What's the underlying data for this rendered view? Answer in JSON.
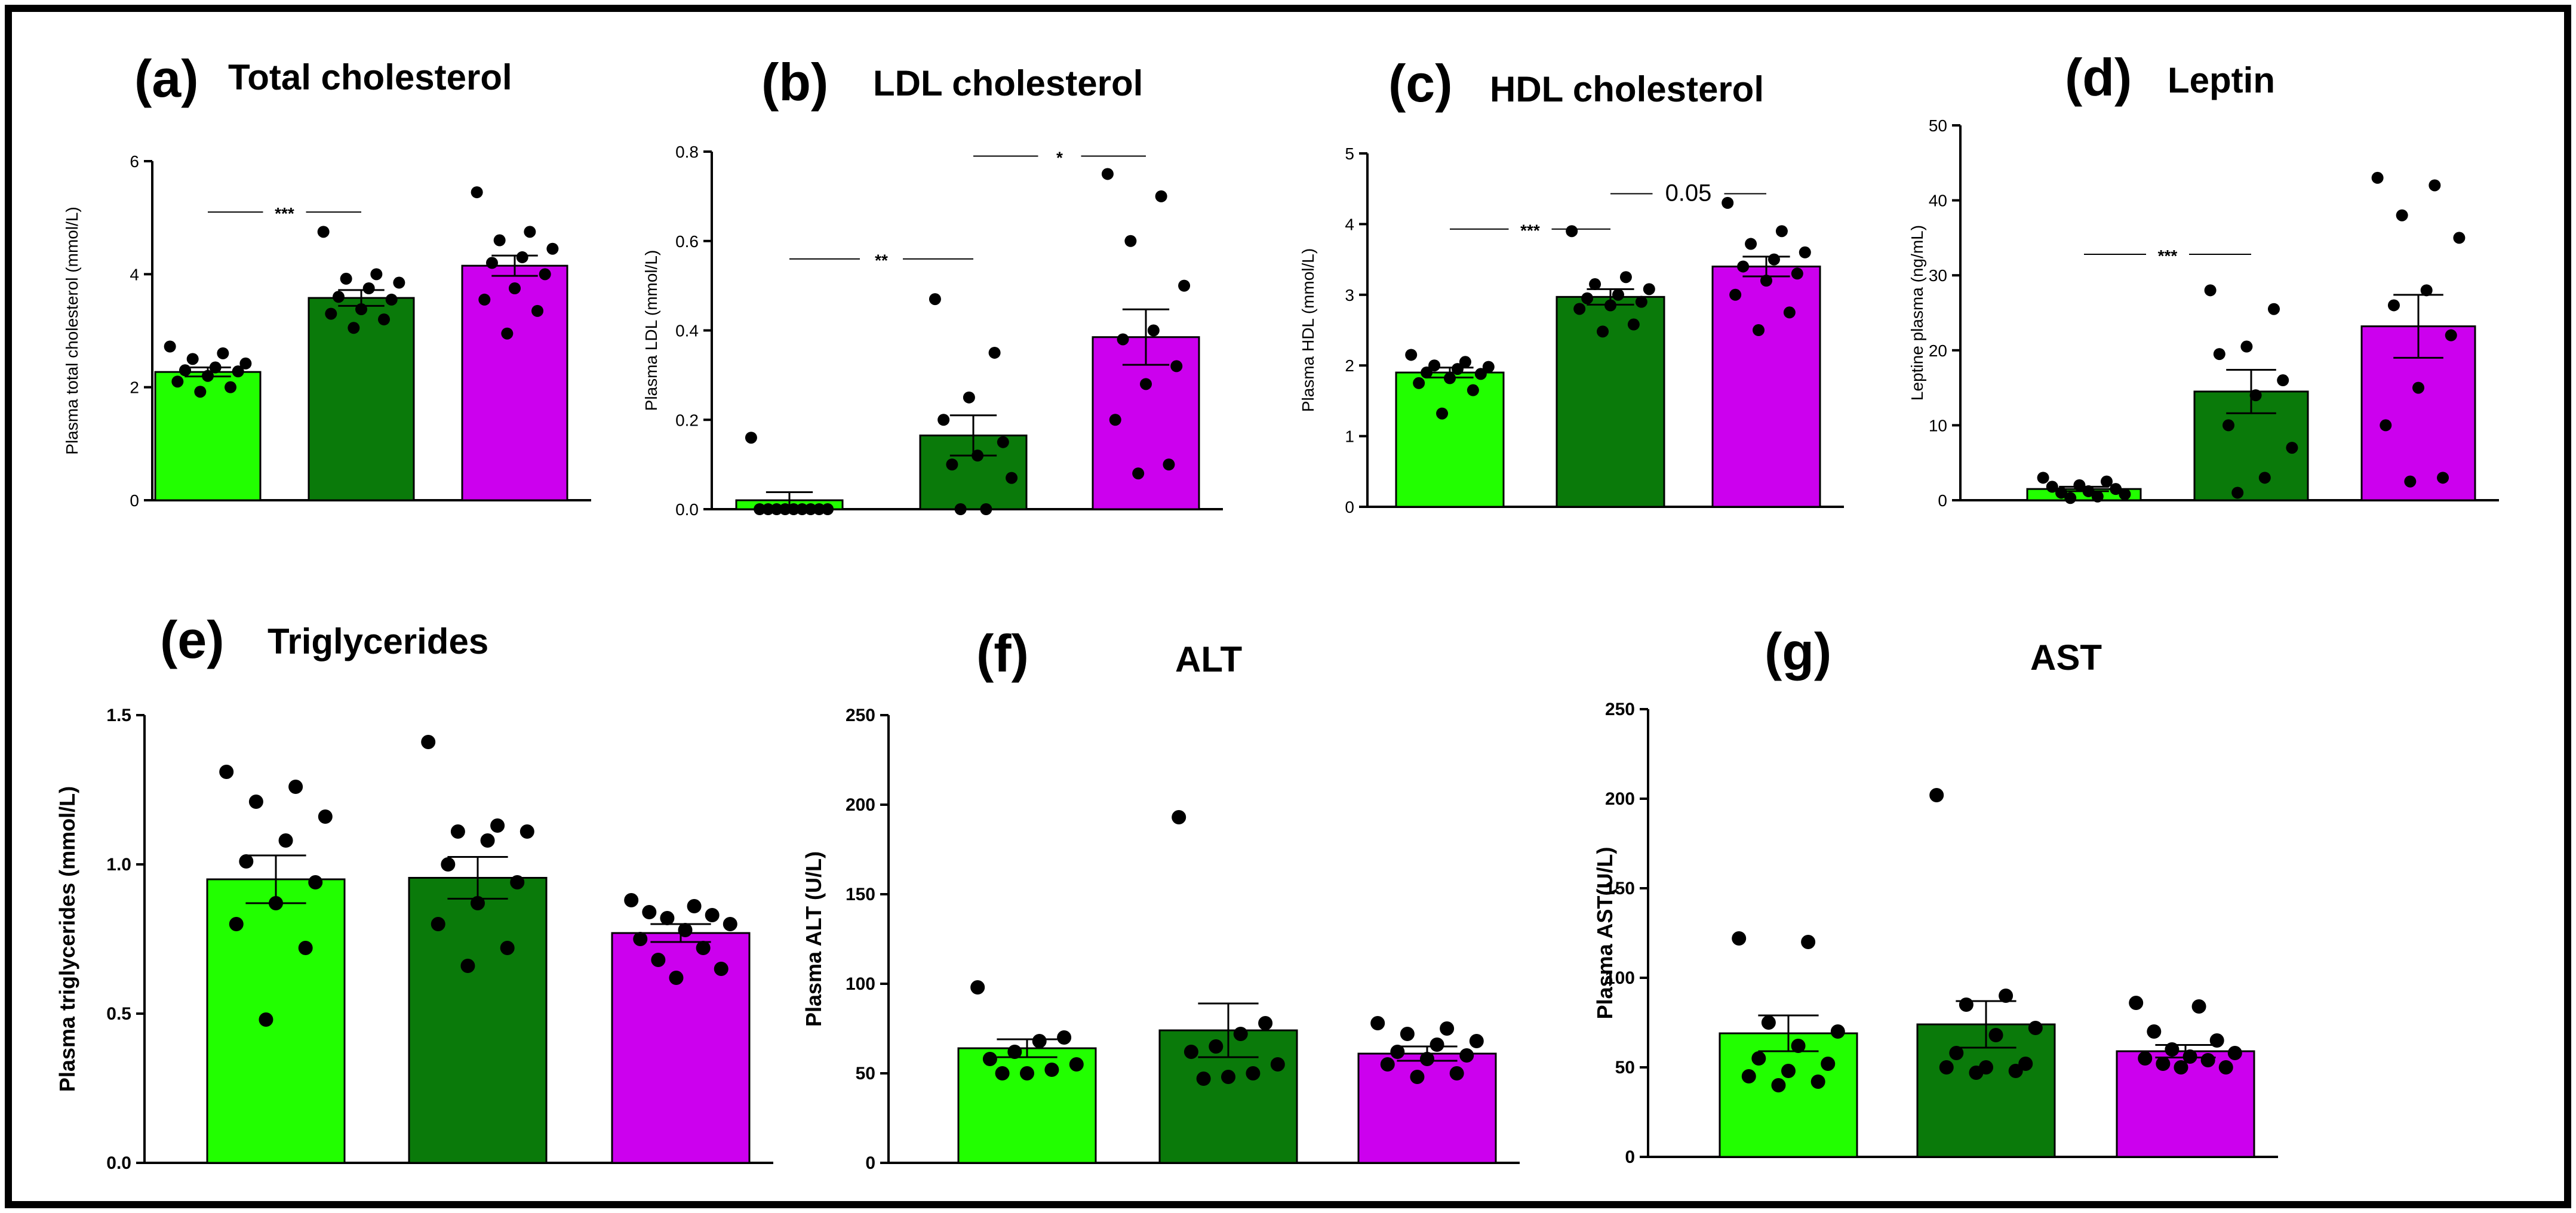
{
  "figure": {
    "colors": [
      "#22ff00",
      "#0a7a0a",
      "#cc00ee"
    ]
  },
  "chart_data": [
    {
      "id": "a",
      "letter": "(a)",
      "type": "bar",
      "title": "Total cholesterol",
      "ylabel": "Plasma total cholesterol (mmol/L)",
      "ylim": [
        0,
        6
      ],
      "yticks": [
        0,
        2,
        4,
        6
      ],
      "ytick_labels": [
        "0",
        "2",
        "4",
        "6"
      ],
      "groups": [
        {
          "mean": 2.27,
          "sem": 0.08,
          "points": [
            2.72,
            2.6,
            2.5,
            2.42,
            2.35,
            2.3,
            2.28,
            2.2,
            2.1,
            2.0,
            1.92
          ]
        },
        {
          "mean": 3.58,
          "sem": 0.14,
          "points": [
            4.75,
            4.0,
            3.92,
            3.85,
            3.75,
            3.6,
            3.55,
            3.38,
            3.3,
            3.2,
            3.05
          ]
        },
        {
          "mean": 4.15,
          "sem": 0.18,
          "points": [
            5.45,
            4.75,
            4.6,
            4.45,
            4.3,
            4.2,
            4.0,
            3.75,
            3.55,
            3.35,
            2.95
          ]
        }
      ],
      "significance": [
        {
          "from": 0,
          "to": 1,
          "y": 5.1,
          "label": "***"
        }
      ]
    },
    {
      "id": "b",
      "letter": "(b)",
      "type": "bar",
      "title": "LDL cholesterol",
      "ylabel": "Plasma LDL (mmol/L)",
      "ylim": [
        0,
        0.8
      ],
      "yticks": [
        0,
        0.2,
        0.4,
        0.6,
        0.8
      ],
      "ytick_labels": [
        "0.0",
        "0.2",
        "0.4",
        "0.6",
        "0.8"
      ],
      "groups": [
        {
          "mean": 0.02,
          "sem": 0.018,
          "points": [
            0.16,
            0.0,
            0.0,
            0.0,
            0.0,
            0.0,
            0.0,
            0.0,
            0.0,
            0.0
          ]
        },
        {
          "mean": 0.165,
          "sem": 0.045,
          "points": [
            0.47,
            0.35,
            0.25,
            0.2,
            0.15,
            0.12,
            0.1,
            0.07,
            0.0,
            0.0
          ]
        },
        {
          "mean": 0.385,
          "sem": 0.062,
          "points": [
            0.75,
            0.7,
            0.6,
            0.5,
            0.4,
            0.38,
            0.32,
            0.28,
            0.2,
            0.1,
            0.08
          ]
        }
      ],
      "significance": [
        {
          "from": 0,
          "to": 1,
          "y": 0.56,
          "label": "**"
        },
        {
          "from": 1,
          "to": 2,
          "y": 0.79,
          "label": "*"
        }
      ]
    },
    {
      "id": "c",
      "letter": "(c)",
      "type": "bar",
      "title": "HDL cholesterol",
      "ylabel": "Plasma HDL (mmol/L)",
      "ylim": [
        0,
        5
      ],
      "yticks": [
        0,
        1,
        2,
        3,
        4,
        5
      ],
      "ytick_labels": [
        "0",
        "1",
        "2",
        "3",
        "4",
        "5"
      ],
      "groups": [
        {
          "mean": 1.9,
          "sem": 0.07,
          "points": [
            2.15,
            2.05,
            2.0,
            1.98,
            1.95,
            1.9,
            1.88,
            1.82,
            1.75,
            1.65,
            1.32
          ]
        },
        {
          "mean": 2.97,
          "sem": 0.11,
          "points": [
            3.9,
            3.25,
            3.15,
            3.08,
            3.0,
            2.95,
            2.9,
            2.85,
            2.8,
            2.58,
            2.48
          ]
        },
        {
          "mean": 3.4,
          "sem": 0.14,
          "points": [
            4.3,
            3.9,
            3.72,
            3.6,
            3.5,
            3.4,
            3.3,
            3.2,
            3.0,
            2.75,
            2.5
          ]
        }
      ],
      "significance": [
        {
          "from": 0,
          "to": 1,
          "y": 3.93,
          "label": "***"
        },
        {
          "from": 1,
          "to": 2,
          "y": 4.43,
          "label": "0.05"
        }
      ]
    },
    {
      "id": "d",
      "letter": "(d)",
      "type": "bar",
      "title": "Leptin",
      "ylabel": "Leptine plasma (ng/mL)",
      "ylim": [
        0,
        50
      ],
      "yticks": [
        0,
        10,
        20,
        30,
        40,
        50
      ],
      "ytick_labels": [
        "0",
        "10",
        "20",
        "30",
        "40",
        "50"
      ],
      "groups": [
        {
          "mean": 1.5,
          "sem": 0.3,
          "points": [
            3.0,
            2.5,
            2.0,
            1.8,
            1.5,
            1.2,
            1.0,
            0.8,
            0.5,
            0.3
          ]
        },
        {
          "mean": 14.5,
          "sem": 2.9,
          "points": [
            28.0,
            25.5,
            20.5,
            19.5,
            16.0,
            14.0,
            10.0,
            7.0,
            3.0,
            1.0
          ]
        },
        {
          "mean": 23.2,
          "sem": 4.2,
          "points": [
            43.0,
            42.0,
            38.0,
            35.0,
            28.0,
            26.0,
            22.0,
            15.0,
            10.0,
            3.0,
            2.5
          ]
        }
      ],
      "significance": [
        {
          "from": 0,
          "to": 1,
          "y": 32.8,
          "label": "***"
        }
      ]
    },
    {
      "id": "e",
      "letter": "(e)",
      "type": "bar",
      "title": "Triglycerides",
      "ylabel": "Plasma triglycerides (mmol/L)",
      "ylim": [
        0,
        1.5
      ],
      "yticks": [
        0,
        0.5,
        1.0,
        1.5
      ],
      "ytick_labels": [
        "0.0",
        "0.5",
        "1.0",
        "1.5"
      ],
      "groups": [
        {
          "mean": 0.95,
          "sem": 0.08,
          "points": [
            1.31,
            1.26,
            1.21,
            1.16,
            1.08,
            1.01,
            0.94,
            0.87,
            0.8,
            0.72,
            0.48
          ]
        },
        {
          "mean": 0.955,
          "sem": 0.07,
          "points": [
            1.41,
            1.13,
            1.11,
            1.11,
            1.08,
            1.0,
            0.94,
            0.87,
            0.8,
            0.72,
            0.66
          ]
        },
        {
          "mean": 0.77,
          "sem": 0.03,
          "points": [
            0.88,
            0.86,
            0.84,
            0.83,
            0.82,
            0.8,
            0.78,
            0.75,
            0.72,
            0.68,
            0.65,
            0.62
          ]
        }
      ],
      "significance": []
    },
    {
      "id": "f",
      "letter": "(f)",
      "type": "bar",
      "title": "ALT",
      "ylabel": "Plasma ALT (U/L)",
      "ylim": [
        0,
        250
      ],
      "yticks": [
        0,
        50,
        100,
        150,
        200,
        250
      ],
      "ytick_labels": [
        "0",
        "50",
        "100",
        "150",
        "200",
        "250"
      ],
      "groups": [
        {
          "mean": 64,
          "sem": 5,
          "points": [
            98,
            70,
            68,
            62,
            58,
            55,
            52,
            50,
            50
          ]
        },
        {
          "mean": 74,
          "sem": 15,
          "points": [
            193,
            78,
            72,
            65,
            62,
            55,
            50,
            48,
            47
          ]
        },
        {
          "mean": 61,
          "sem": 4,
          "points": [
            78,
            75,
            72,
            68,
            66,
            62,
            60,
            58,
            55,
            50,
            48
          ]
        }
      ],
      "significance": []
    },
    {
      "id": "g",
      "letter": "(g)",
      "type": "bar",
      "title": "AST",
      "ylabel": "Plasma AST(U/L)",
      "ylim": [
        0,
        250
      ],
      "yticks": [
        0,
        50,
        100,
        150,
        200,
        250
      ],
      "ytick_labels": [
        "0",
        "50",
        "100",
        "150",
        "200",
        "250"
      ],
      "groups": [
        {
          "mean": 69,
          "sem": 10,
          "points": [
            122,
            120,
            75,
            70,
            62,
            55,
            52,
            48,
            45,
            42,
            40
          ]
        },
        {
          "mean": 74,
          "sem": 13,
          "points": [
            202,
            90,
            85,
            72,
            68,
            58,
            52,
            50,
            50,
            48,
            47
          ]
        },
        {
          "mean": 59,
          "sem": 3.5,
          "points": [
            86,
            84,
            70,
            65,
            60,
            58,
            56,
            55,
            54,
            52,
            50,
            50
          ]
        }
      ],
      "significance": []
    }
  ]
}
